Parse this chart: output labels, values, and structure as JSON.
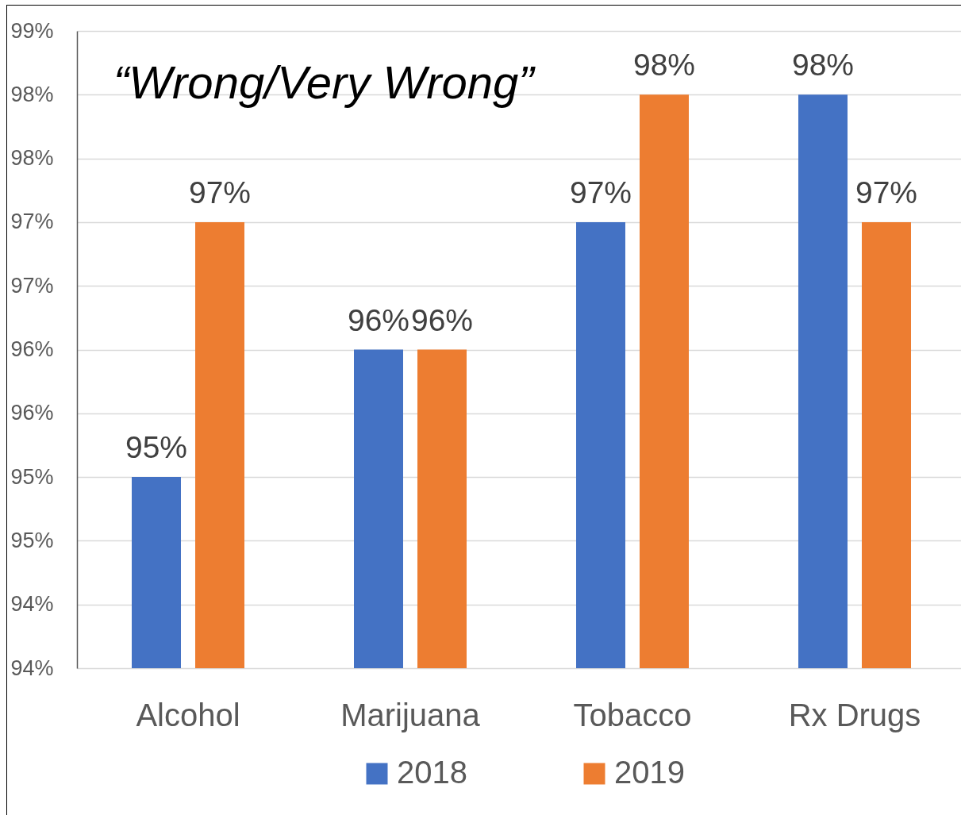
{
  "chart_data": {
    "type": "bar",
    "title": "“Wrong/Very Wrong”",
    "categories": [
      "Alcohol",
      "Marijuana",
      "Tobacco",
      "Rx Drugs"
    ],
    "series": [
      {
        "name": "2018",
        "color": "#4472c4",
        "values": [
          95,
          96,
          97,
          98
        ],
        "value_labels": [
          "95%",
          "96%",
          "97%",
          "98%"
        ]
      },
      {
        "name": "2019",
        "color": "#ed7d31",
        "values": [
          97,
          96,
          98,
          97
        ],
        "value_labels": [
          "97%",
          "96%",
          "98%",
          "97%"
        ]
      }
    ],
    "ylim": [
      93.5,
      98.5
    ],
    "yticks": [
      {
        "value": 93.5,
        "label": "94%"
      },
      {
        "value": 94,
        "label": "94%"
      },
      {
        "value": 94.5,
        "label": "95%"
      },
      {
        "value": 95,
        "label": "95%"
      },
      {
        "value": 95.5,
        "label": "96%"
      },
      {
        "value": 96,
        "label": "96%"
      },
      {
        "value": 96.5,
        "label": "97%"
      },
      {
        "value": 97,
        "label": "97%"
      },
      {
        "value": 97.5,
        "label": "98%"
      },
      {
        "value": 98,
        "label": "98%"
      },
      {
        "value": 98.5,
        "label": "99%"
      }
    ],
    "grid": "y",
    "legend": "bottom"
  }
}
